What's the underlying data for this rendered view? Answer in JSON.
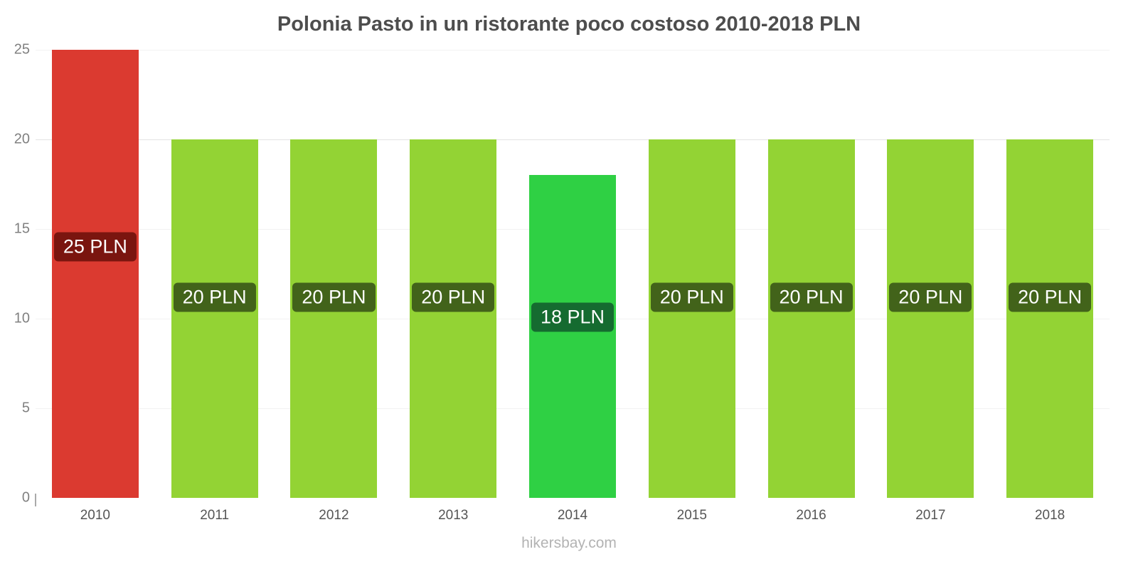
{
  "page": {
    "title": "Polonia Pasto in un ristorante poco costoso 2010-2018 PLN",
    "footer": "hikersbay.com"
  },
  "chart_data": {
    "type": "bar",
    "title": "Polonia Pasto in un ristorante poco costoso 2010-2018 PLN",
    "categories": [
      "2010",
      "2011",
      "2012",
      "2013",
      "2014",
      "2015",
      "2016",
      "2017",
      "2018"
    ],
    "values": [
      25,
      20,
      20,
      20,
      18,
      20,
      20,
      20,
      20
    ],
    "bar_labels": [
      "25 PLN",
      "20 PLN",
      "20 PLN",
      "20 PLN",
      "18 PLN",
      "20 PLN",
      "20 PLN",
      "20 PLN",
      "20 PLN"
    ],
    "bar_colors": [
      "#db3a30",
      "#93d334",
      "#93d334",
      "#93d334",
      "#2fd044",
      "#93d334",
      "#93d334",
      "#93d334",
      "#93d334"
    ],
    "bar_label_colors": [
      "#7a150f",
      "#42631a",
      "#42631a",
      "#42631a",
      "#156b30",
      "#42631a",
      "#42631a",
      "#42631a",
      "#42631a"
    ],
    "xlabel": "",
    "ylabel": "",
    "ylim": [
      0,
      25
    ],
    "yticks": [
      0,
      5,
      10,
      15,
      20,
      25
    ],
    "legend": "none",
    "grid": "faint horizontal gridlines, emphasized at 20",
    "unit": "PLN"
  }
}
